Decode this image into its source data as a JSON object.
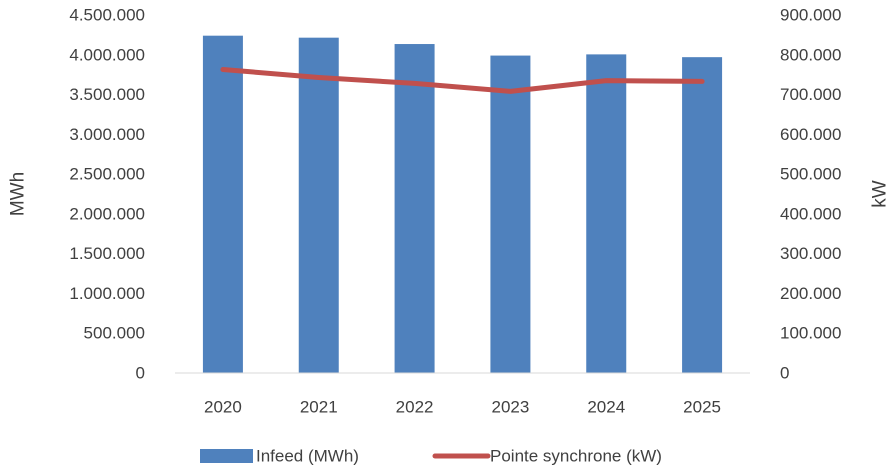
{
  "chart_data": {
    "type": "bar",
    "categories": [
      "2020",
      "2021",
      "2022",
      "2023",
      "2024",
      "2025"
    ],
    "series": [
      {
        "name": "Infeed (MWh)",
        "type": "bar",
        "axis": "left",
        "values": [
          4240000,
          4215000,
          4135000,
          3990000,
          4005000,
          3970000
        ]
      },
      {
        "name": "Pointe synchrone (kW)",
        "type": "line",
        "axis": "right",
        "values": [
          763000,
          743000,
          728000,
          708000,
          735000,
          733000
        ]
      }
    ],
    "ylabel": "MWh",
    "y2label": "kW",
    "ylim": [
      0,
      4500000
    ],
    "y2lim": [
      0,
      900000
    ],
    "yticks": [
      "0",
      "500.000",
      "1.000.000",
      "1.500.000",
      "2.000.000",
      "2.500.000",
      "3.000.000",
      "3.500.000",
      "4.000.000",
      "4.500.000"
    ],
    "y2ticks": [
      "0",
      "100.000",
      "200.000",
      "300.000",
      "400.000",
      "500.000",
      "600.000",
      "700.000",
      "800.000",
      "900.000"
    ],
    "grid": false,
    "legend": "bottom",
    "colors": {
      "bar": "#4f81bd",
      "line": "#c0504d",
      "text": "#404040",
      "axis": "#d9d9d9"
    }
  }
}
